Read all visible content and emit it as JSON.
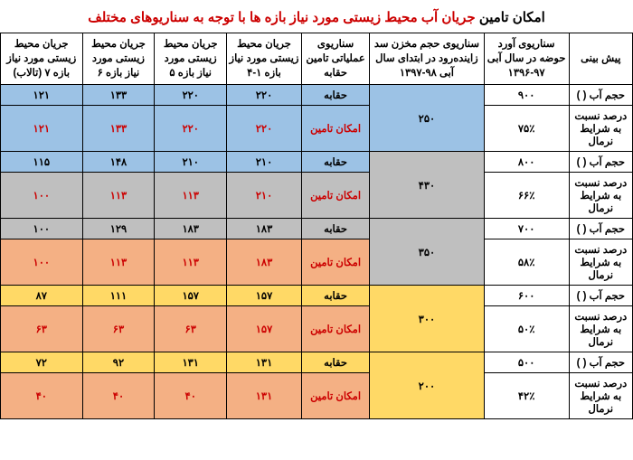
{
  "title_black": "امکان تامین ",
  "title_red": "جریان آب محیط زیستی مورد نیاز بازه ها با توجه به سناریوهای مختلف",
  "headers": [
    "پیش بینی",
    "سناریوی آورد حوضه در سال آبی ۹۷-۱۳۹۶",
    "سناریوی حجم مخزن سد زاینده‌رود در ابتدای سال آبی ۹۸-۱۳۹۷",
    "سناریوی عملیاتی تامین حقابه",
    "جریان محیط زیستی مورد نیاز بازه ۱-۴",
    "جریان محیط زیستی مورد نیاز بازه ۵",
    "جریان محیط زیستی مورد نیاز بازه ۶",
    "جریان محیط زیستی مورد نیاز بازه ۷ (تالاب)"
  ],
  "groups": [
    {
      "inflow": "۹۰۰",
      "pct": "۷۵٪",
      "storage": "۲۵۰",
      "storage_bg": "bg-blue",
      "r1": {
        "bg": "bg-blue",
        "op": "حقابه",
        "op_red": false,
        "v": [
          "۲۲۰",
          "۲۲۰",
          "۱۳۳",
          "۱۲۱"
        ],
        "red": [
          false,
          false,
          false,
          false
        ]
      },
      "r2": {
        "bg": "bg-blue",
        "op": "امکان تامین",
        "op_red": true,
        "v": [
          "۲۲۰",
          "۲۲۰",
          "۱۳۳",
          "۱۲۱"
        ],
        "red": [
          true,
          true,
          true,
          true
        ]
      }
    },
    {
      "inflow": "۸۰۰",
      "pct": "۶۶٪",
      "storage": "۴۳۰",
      "storage_bg": "bg-gray",
      "r1": {
        "bg": "bg-blue",
        "op": "حقابه",
        "op_red": false,
        "v": [
          "۲۱۰",
          "۲۱۰",
          "۱۴۸",
          "۱۱۵"
        ],
        "red": [
          false,
          false,
          false,
          false
        ]
      },
      "r2": {
        "bg": "bg-gray",
        "op": "امکان تامین",
        "op_red": true,
        "v": [
          "۲۱۰",
          "۱۱۳",
          "۱۱۳",
          "۱۰۰"
        ],
        "red": [
          true,
          true,
          true,
          true
        ]
      }
    },
    {
      "inflow": "۷۰۰",
      "pct": "۵۸٪",
      "storage": "۳۵۰",
      "storage_bg": "bg-gray",
      "r1": {
        "bg": "bg-gray",
        "op": "حقابه",
        "op_red": false,
        "v": [
          "۱۸۳",
          "۱۸۳",
          "۱۲۹",
          "۱۰۰"
        ],
        "red": [
          false,
          false,
          false,
          false
        ]
      },
      "r2": {
        "bg": "bg-orange",
        "op": "امکان تامین",
        "op_red": true,
        "v": [
          "۱۸۳",
          "۱۱۳",
          "۱۱۳",
          "۱۰۰"
        ],
        "red": [
          true,
          true,
          true,
          true
        ]
      }
    },
    {
      "inflow": "۶۰۰",
      "pct": "۵۰٪",
      "storage": "۳۰۰",
      "storage_bg": "bg-yellow",
      "r1": {
        "bg": "bg-yellow",
        "op": "حقابه",
        "op_red": false,
        "v": [
          "۱۵۷",
          "۱۵۷",
          "۱۱۱",
          "۸۷"
        ],
        "red": [
          false,
          false,
          false,
          false
        ]
      },
      "r2": {
        "bg": "bg-orange",
        "op": "امکان تامین",
        "op_red": true,
        "v": [
          "۱۵۷",
          "۶۳",
          "۶۳",
          "۶۳"
        ],
        "red": [
          true,
          true,
          true,
          true
        ]
      }
    },
    {
      "inflow": "۵۰۰",
      "pct": "۴۲٪",
      "storage": "۲۰۰",
      "storage_bg": "bg-yellow",
      "r1": {
        "bg": "bg-yellow",
        "op": "حقابه",
        "op_red": false,
        "v": [
          "۱۳۱",
          "۱۳۱",
          "۹۲",
          "۷۲"
        ],
        "red": [
          false,
          false,
          false,
          false
        ]
      },
      "r2": {
        "bg": "bg-orange",
        "op": "امکان تامین",
        "op_red": true,
        "v": [
          "۱۳۱",
          "۴۰",
          "۴۰",
          "۴۰"
        ],
        "red": [
          true,
          true,
          true,
          true
        ]
      }
    }
  ],
  "row_label_1": "حجم آب (  )",
  "row_label_2": "درصد نسبت به شرایط نرمال"
}
